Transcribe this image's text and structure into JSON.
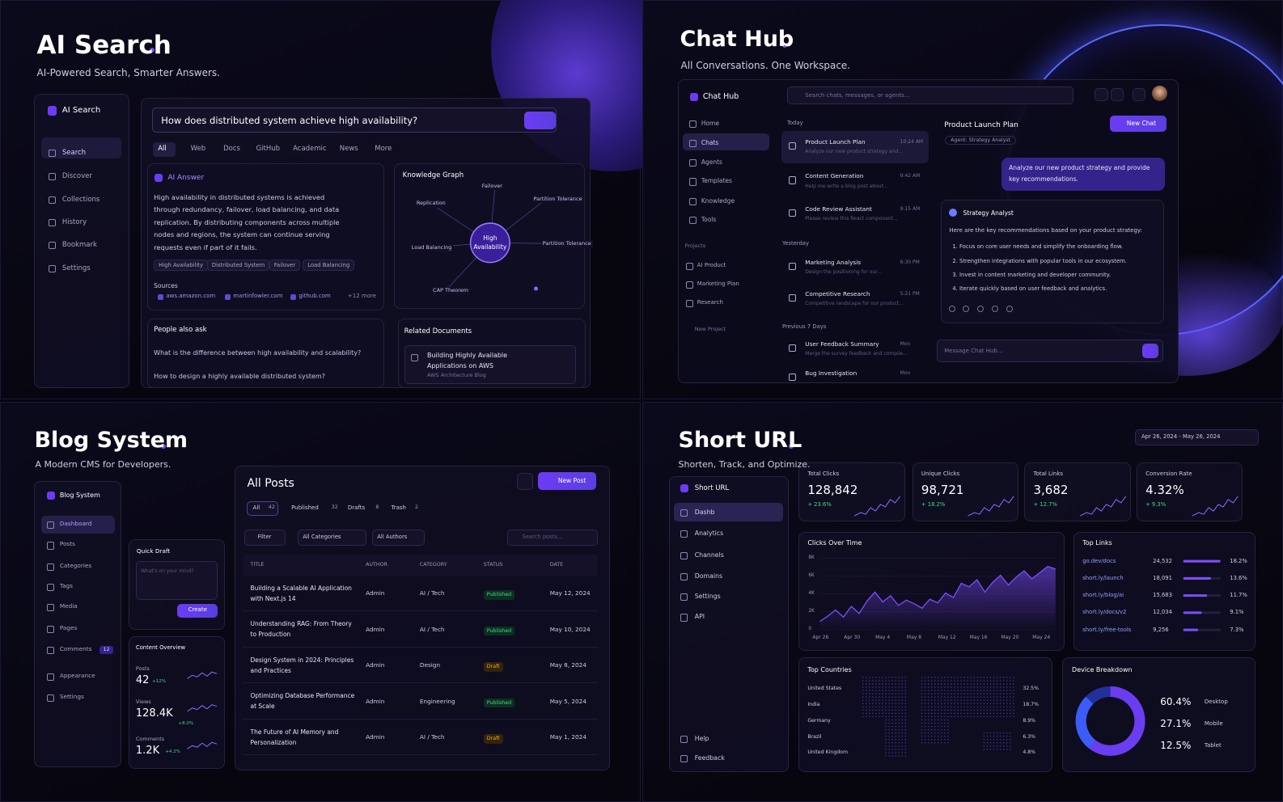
{
  "ai_search": {
    "title": "AI Search",
    "subtitle": "AI-Powered Search, Smarter Answers.",
    "brand": "AI Search",
    "nav": [
      "Search",
      "Discover",
      "Collections",
      "History",
      "Bookmark",
      "Settings"
    ],
    "query": "How does distributed system achieve high availability?",
    "tabs": [
      "All",
      "Web",
      "Docs",
      "GitHub",
      "Academic",
      "News",
      "More"
    ],
    "answer": {
      "heading": "AI Answer",
      "text": "High availability in distributed systems is achieved through redundancy, failover, load balancing, and data replication. By distributing components across multiple nodes and regions, the system can continue serving requests even if part of it fails.",
      "tags": [
        "High Availability",
        "Distributed System",
        "Failover",
        "Load Balancing"
      ],
      "sources_heading": "Sources",
      "sources": [
        "aws.amazon.com",
        "martinfowler.com",
        "github.com"
      ],
      "more": "+12 more"
    },
    "graph": {
      "title": "Knowledge Graph",
      "center": "High Availability",
      "nodes": [
        "Failover",
        "Partition Tolerance",
        "Replication",
        "Load Balancing",
        "Partition Tolerance",
        "CAP Theorem"
      ]
    },
    "people_also_ask": {
      "title": "People also ask",
      "questions": [
        "What is the difference between high availability and scalability?",
        "How to design a highly available distributed system?"
      ]
    },
    "related": {
      "title": "Related Documents",
      "doc_title": "Building Highly Available Applications on AWS",
      "doc_source": "AWS Architecture Blog"
    }
  },
  "chat_hub": {
    "title": "Chat Hub",
    "subtitle": "All Conversations. One Workspace.",
    "brand": "Chat Hub",
    "search": "Search chats, messages, or agents...",
    "nav": [
      "Home",
      "Chats",
      "Agents",
      "Templates",
      "Knowledge",
      "Tools"
    ],
    "projects_heading": "Projects",
    "projects": [
      "AI Product",
      "Marketing Plan",
      "Research"
    ],
    "new_project": "New Project",
    "groups": [
      {
        "heading": "Today",
        "items": [
          {
            "title": "Product Launch Plan",
            "preview": "Analyze our new product strategy and...",
            "time": "10:24 AM"
          },
          {
            "title": "Content Generation",
            "preview": "Help me write a blog post about...",
            "time": "9:42 AM"
          },
          {
            "title": "Code Review Assistant",
            "preview": "Please review this React component...",
            "time": "9:15 AM"
          }
        ]
      },
      {
        "heading": "Yesterday",
        "items": [
          {
            "title": "Marketing Analysis",
            "preview": "Design the positioning for our...",
            "time": "6:30 PM"
          },
          {
            "title": "Competitive Research",
            "preview": "Competitive landscape for our product...",
            "time": "5:21 PM"
          }
        ]
      },
      {
        "heading": "Previous 7 Days",
        "items": [
          {
            "title": "User Feedback Summary",
            "preview": "Merge the survey feedback and compile...",
            "time": "Mon"
          },
          {
            "title": "Bug Investigation",
            "time": "Mon"
          }
        ]
      }
    ],
    "conversation": {
      "title": "Product Launch Plan",
      "new_chat": "New Chat",
      "agent": "Agent: Strategy Analyst",
      "user_message": "Analyze our new product strategy and provide key recommendations.",
      "reply_name": "Strategy Analyst",
      "reply_intro": "Here are the key recommendations based on your product strategy:",
      "reply_items": [
        "1. Focus on core user needs and simplify the onboarding flow.",
        "2. Strengthen integrations with popular tools in our ecosystem.",
        "3. Invest in content marketing and developer community.",
        "4. Iterate quickly based on user feedback and analytics."
      ],
      "input": "Message Chat Hub..."
    }
  },
  "blog_system": {
    "title": "Blog System",
    "subtitle": "A Modern CMS for Developers.",
    "brand": "Blog System",
    "nav": [
      "Dashboard",
      "Posts",
      "Categories",
      "Tags",
      "Media",
      "Pages",
      "Comments",
      "Appearance",
      "Settings"
    ],
    "comments_badge": "12",
    "quick_draft": {
      "title": "Quick Draft",
      "placeholder": "What's on your mind?",
      "button": "Create"
    },
    "overview": {
      "title": "Content Overview",
      "stats": [
        {
          "label": "Posts",
          "value": "42",
          "change": "+12%"
        },
        {
          "label": "Views",
          "value": "128.4K",
          "change": "+8.0%"
        },
        {
          "label": "Comments",
          "value": "1.2K",
          "change": "+4.2%"
        }
      ]
    },
    "posts": {
      "title": "All Posts",
      "new_post": "New Post",
      "tabs": [
        {
          "label": "All",
          "count": "42"
        },
        {
          "label": "Published",
          "count": "32"
        },
        {
          "label": "Drafts",
          "count": "8"
        },
        {
          "label": "Trash",
          "count": "2"
        }
      ],
      "filters": [
        "Filter",
        "All Categories",
        "All Authors"
      ],
      "search": "Search posts...",
      "columns": [
        "TITLE",
        "AUTHOR",
        "CATEGORY",
        "STATUS",
        "DATE"
      ],
      "rows": [
        [
          "Building a Scalable AI Application with Next.js 14",
          "Admin",
          "AI / Tech",
          "Published",
          "May 12, 2024"
        ],
        [
          "Understanding RAG: From Theory to Production",
          "Admin",
          "AI / Tech",
          "Published",
          "May 10, 2024"
        ],
        [
          "Design System in 2024: Principles and Practices",
          "Admin",
          "Design",
          "Draft",
          "May 8, 2024"
        ],
        [
          "Optimizing Database Performance at Scale",
          "Admin",
          "Engineering",
          "Published",
          "May 5, 2024"
        ],
        [
          "The Future of AI Memory and Personalization",
          "Admin",
          "AI / Tech",
          "Draft",
          "May 1, 2024"
        ]
      ]
    }
  },
  "short_url": {
    "title": "Short URL",
    "subtitle": "Shorten, Track, and Optimize.",
    "date_range": "Apr 26, 2024 - May 26, 2024",
    "brand": "Short URL",
    "nav": [
      "Dashb",
      "Analytics",
      "Channels",
      "Domains",
      "Settings",
      "API"
    ],
    "footer_nav": [
      "Help",
      "Feedback"
    ],
    "stats": [
      {
        "label": "Total Clicks",
        "value": "128,842",
        "change": "+ 23.6%"
      },
      {
        "label": "Unique Clicks",
        "value": "98,721",
        "change": "+ 18.2%"
      },
      {
        "label": "Total Links",
        "value": "3,682",
        "change": "+ 12.7%"
      },
      {
        "label": "Conversion Rate",
        "value": "4.32%",
        "change": "+ 9.3%"
      }
    ],
    "clicks_chart": {
      "type": "line",
      "title": "Clicks Over Time",
      "categories": [
        "Apr 26",
        null,
        null,
        null,
        "Apr 30",
        null,
        null,
        null,
        "May 4",
        null,
        null,
        null,
        "May 8",
        null,
        null,
        null,
        "May 12",
        null,
        null,
        null,
        "May 16",
        null,
        null,
        null,
        "May 20",
        null,
        null,
        null,
        "May 24",
        null,
        null
      ],
      "values": [
        900,
        1500,
        2200,
        1400,
        2600,
        1800,
        3200,
        4200,
        3100,
        3800,
        2700,
        3300,
        2900,
        2400,
        3400,
        3000,
        4100,
        3600,
        5200,
        4800,
        5600,
        4200,
        5300,
        6100,
        5000,
        5900,
        6600,
        5700,
        6400,
        7100,
        6800
      ],
      "color": "#7b4dff",
      "ylim": [
        0,
        8000
      ],
      "yticks": [
        0,
        {
          "value": 2000,
          "label": "2K"
        },
        {
          "value": 4000,
          "label": "4K"
        },
        {
          "value": 6000,
          "label": "6K"
        },
        {
          "value": 8000,
          "label": "8K"
        }
      ]
    },
    "top_links": {
      "title": "Top Links",
      "urls": [
        "go.dev/docs",
        "short.ly/launch",
        "short.ly/blog/ai",
        "short.ly/docs/v2",
        "short.ly/free-tools"
      ],
      "clicks": [
        "24,532",
        "18,091",
        "15,683",
        "12,034",
        "9,256"
      ],
      "values": [
        18.2,
        13.6,
        11.7,
        9.1,
        7.3
      ],
      "value_labels": [
        "18.2%",
        "13.6%",
        "11.7%",
        "9.1%",
        "7.3%"
      ],
      "color": "#7b4dff"
    },
    "top_countries": {
      "title": "Top Countries",
      "names": [
        "United States",
        "India",
        "Germany",
        "Brazil",
        "United Kingdom"
      ],
      "shares": [
        "32.5%",
        "18.7%",
        "8.9%",
        "6.3%",
        "4.8%"
      ]
    },
    "device_breakdown": {
      "type": "pie",
      "title": "Device Breakdown",
      "categories": [
        "Desktop",
        "Mobile",
        "Tablet"
      ],
      "values": [
        60.4,
        27.1,
        12.5
      ],
      "value_labels": [
        "60.4%",
        "27.1%",
        "12.5%"
      ],
      "colors": [
        "#6a3df0",
        "#3b5cf6",
        "#22309e"
      ]
    }
  }
}
